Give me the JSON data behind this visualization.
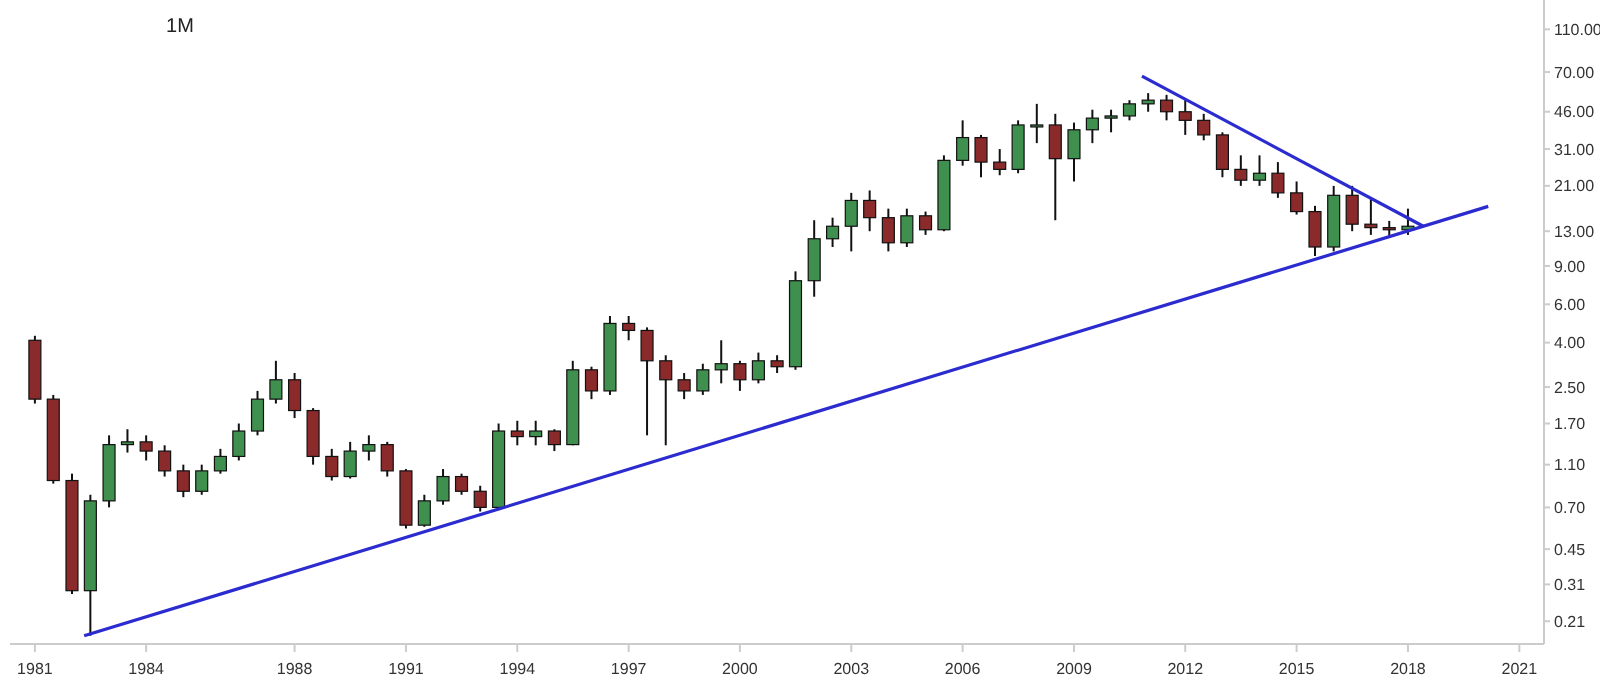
{
  "chart_data": {
    "type": "candlestick",
    "title": "1M",
    "x": [
      "1981-01",
      "1981-07",
      "1982-01",
      "1982-07",
      "1983-01",
      "1983-07",
      "1984-01",
      "1984-07",
      "1985-01",
      "1985-07",
      "1986-01",
      "1986-07",
      "1987-01",
      "1987-07",
      "1988-01",
      "1988-07",
      "1989-01",
      "1989-07",
      "1990-01",
      "1990-07",
      "1991-01",
      "1991-07",
      "1992-01",
      "1992-07",
      "1993-01",
      "1993-07",
      "1994-01",
      "1994-07",
      "1995-01",
      "1995-07",
      "1996-01",
      "1996-07",
      "1997-01",
      "1997-07",
      "1998-01",
      "1998-07",
      "1999-01",
      "1999-07",
      "2000-01",
      "2000-07",
      "2001-01",
      "2001-07",
      "2002-01",
      "2002-07",
      "2003-01",
      "2003-07",
      "2004-01",
      "2004-07",
      "2005-01",
      "2005-07",
      "2006-01",
      "2006-07",
      "2007-01",
      "2007-07",
      "2008-01",
      "2008-07",
      "2009-01",
      "2009-07",
      "2010-01",
      "2010-07",
      "2011-01",
      "2011-07",
      "2012-01",
      "2012-07",
      "2013-01",
      "2013-07",
      "2014-01",
      "2014-07",
      "2015-01",
      "2015-07",
      "2016-01",
      "2016-07",
      "2017-01",
      "2017-07",
      "2018-01"
    ],
    "ohlc": [
      [
        4.1,
        4.3,
        2.1,
        2.2
      ],
      [
        2.2,
        2.3,
        0.9,
        0.93
      ],
      [
        0.93,
        1.0,
        0.28,
        0.29
      ],
      [
        0.29,
        0.8,
        0.18,
        0.75
      ],
      [
        0.75,
        1.5,
        0.7,
        1.36
      ],
      [
        1.36,
        1.6,
        1.25,
        1.4
      ],
      [
        1.4,
        1.5,
        1.15,
        1.27
      ],
      [
        1.27,
        1.35,
        0.97,
        1.03
      ],
      [
        1.03,
        1.1,
        0.78,
        0.83
      ],
      [
        0.83,
        1.1,
        0.8,
        1.03
      ],
      [
        1.03,
        1.3,
        1.0,
        1.2
      ],
      [
        1.2,
        1.7,
        1.15,
        1.57
      ],
      [
        1.57,
        2.4,
        1.5,
        2.2
      ],
      [
        2.2,
        3.3,
        2.1,
        2.7
      ],
      [
        2.7,
        2.9,
        1.8,
        1.95
      ],
      [
        1.95,
        2.0,
        1.1,
        1.2
      ],
      [
        1.2,
        1.3,
        0.93,
        0.97
      ],
      [
        0.97,
        1.4,
        0.95,
        1.27
      ],
      [
        1.27,
        1.5,
        1.15,
        1.36
      ],
      [
        1.36,
        1.4,
        0.97,
        1.03
      ],
      [
        1.03,
        1.05,
        0.56,
        0.58
      ],
      [
        0.58,
        0.8,
        0.57,
        0.75
      ],
      [
        0.75,
        1.05,
        0.72,
        0.97
      ],
      [
        0.97,
        1.0,
        0.8,
        0.83
      ],
      [
        0.83,
        0.88,
        0.67,
        0.7
      ],
      [
        0.7,
        1.7,
        0.68,
        1.57
      ],
      [
        1.57,
        1.75,
        1.35,
        1.48
      ],
      [
        1.48,
        1.75,
        1.35,
        1.57
      ],
      [
        1.57,
        1.6,
        1.27,
        1.36
      ],
      [
        1.36,
        3.3,
        1.35,
        3.0
      ],
      [
        3.0,
        3.1,
        2.2,
        2.4
      ],
      [
        2.4,
        5.3,
        2.3,
        4.9
      ],
      [
        4.9,
        5.3,
        4.1,
        4.55
      ],
      [
        4.55,
        4.7,
        1.5,
        3.3
      ],
      [
        3.3,
        3.5,
        1.35,
        2.7
      ],
      [
        2.7,
        2.9,
        2.2,
        2.4
      ],
      [
        2.4,
        3.2,
        2.3,
        3.0
      ],
      [
        3.0,
        4.1,
        2.6,
        3.2
      ],
      [
        3.2,
        3.3,
        2.4,
        2.7
      ],
      [
        2.7,
        3.6,
        2.6,
        3.3
      ],
      [
        3.3,
        3.5,
        2.9,
        3.1
      ],
      [
        3.1,
        8.5,
        3.0,
        7.7
      ],
      [
        7.7,
        14.6,
        6.5,
        12
      ],
      [
        12,
        15,
        11,
        13.7
      ],
      [
        13.7,
        19.5,
        10.5,
        18
      ],
      [
        18,
        20,
        13,
        15
      ],
      [
        15,
        16.5,
        10.5,
        11.5
      ],
      [
        11.5,
        16.5,
        11,
        15.3
      ],
      [
        15.3,
        16,
        12.5,
        13.2
      ],
      [
        13.2,
        29,
        13,
        27.5
      ],
      [
        27.5,
        42,
        26,
        35
      ],
      [
        35,
        36,
        23,
        27
      ],
      [
        27,
        31,
        23.5,
        25
      ],
      [
        25,
        42,
        24,
        40
      ],
      [
        40,
        50,
        33,
        40
      ],
      [
        40,
        45,
        14.6,
        28
      ],
      [
        28,
        41,
        22,
        38
      ],
      [
        38,
        47,
        33,
        43
      ],
      [
        43,
        47,
        37,
        44
      ],
      [
        44,
        52,
        42,
        50
      ],
      [
        50,
        56,
        46,
        52
      ],
      [
        52,
        55,
        42,
        46
      ],
      [
        46,
        52,
        36,
        42
      ],
      [
        42,
        45,
        34,
        36
      ],
      [
        36,
        37,
        23,
        25
      ],
      [
        25,
        29,
        21,
        22.3
      ],
      [
        22.3,
        29,
        21,
        24
      ],
      [
        24,
        27,
        18.5,
        19.5
      ],
      [
        19.5,
        22,
        15.5,
        16
      ],
      [
        16,
        17,
        10,
        11
      ],
      [
        11,
        21,
        10.5,
        19
      ],
      [
        19,
        21,
        13,
        14
      ],
      [
        14,
        18.6,
        12.5,
        13.5
      ],
      [
        13.5,
        14.5,
        12.3,
        13.2
      ],
      [
        13.2,
        16.5,
        12.5,
        13.7
      ]
    ],
    "series": [
      {
        "type": "line",
        "color": "#2b2bd0",
        "x": [
          "1982-05",
          "2020-03"
        ],
        "values": [
          0.18,
          16.9
        ]
      },
      {
        "type": "line",
        "color": "#2b2bd0",
        "x": [
          "2010-11",
          "2018-06"
        ],
        "values": [
          67,
          13.7
        ]
      }
    ],
    "log": true,
    "grid": false,
    "xlim": [
      "1980-05",
      "2021-09"
    ],
    "xticks": [
      "1981",
      "1984",
      "1988",
      "1991",
      "1994",
      "1997",
      "2000",
      "2003",
      "2006",
      "2009",
      "2012",
      "2015",
      "2018",
      "2021"
    ],
    "ylim": [
      0.165,
      150
    ],
    "yticks": [
      {
        "value": 110,
        "label": "110.00"
      },
      {
        "value": 70,
        "label": "70.00"
      },
      {
        "value": 46,
        "label": "46.00"
      },
      {
        "value": 31,
        "label": "31.00"
      },
      {
        "value": 21,
        "label": "21.00"
      },
      {
        "value": 13,
        "label": "13.00"
      },
      {
        "value": 9,
        "label": "9.00"
      },
      {
        "value": 6,
        "label": "6.00"
      },
      {
        "value": 4,
        "label": "4.00"
      },
      {
        "value": 2.5,
        "label": "2.50"
      },
      {
        "value": 1.7,
        "label": "1.70"
      },
      {
        "value": 1.1,
        "label": "1.10"
      },
      {
        "value": 0.7,
        "label": "0.70"
      },
      {
        "value": 0.45,
        "label": "0.45"
      },
      {
        "value": 0.31,
        "label": "0.31"
      },
      {
        "value": 0.21,
        "label": "0.21"
      }
    ]
  }
}
